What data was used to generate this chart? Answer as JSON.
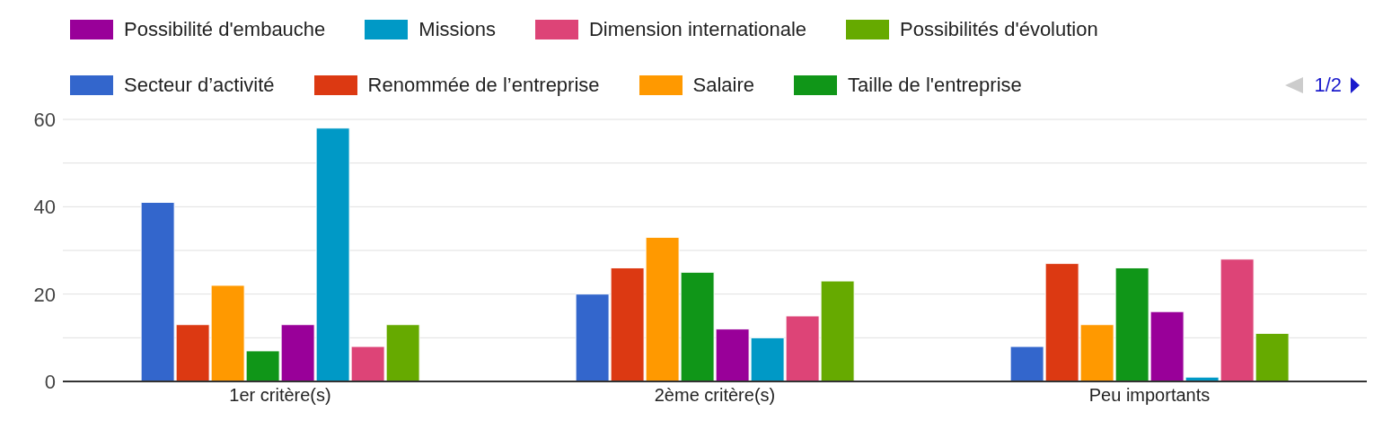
{
  "chart_data": {
    "type": "bar",
    "categories": [
      "1er critère(s)",
      "2ème critère(s)",
      "Peu importants"
    ],
    "series": [
      {
        "name": "Secteur d’activité",
        "color": "#3366cc",
        "values": [
          41,
          20,
          8
        ]
      },
      {
        "name": "Renommée de l’entreprise",
        "color": "#dc3912",
        "values": [
          13,
          26,
          27
        ]
      },
      {
        "name": "Salaire",
        "color": "#ff9900",
        "values": [
          22,
          33,
          13
        ]
      },
      {
        "name": "Taille de l'entreprise",
        "color": "#109618",
        "values": [
          7,
          25,
          26
        ]
      },
      {
        "name": "Possibilité d'embauche",
        "color": "#990099",
        "values": [
          13,
          12,
          16
        ]
      },
      {
        "name": "Missions",
        "color": "#0099c6",
        "values": [
          58,
          10,
          1
        ]
      },
      {
        "name": "Dimension internationale",
        "color": "#dd4477",
        "values": [
          8,
          15,
          28
        ]
      },
      {
        "name": "Possibilités d'évolution",
        "color": "#66aa00",
        "values": [
          13,
          23,
          11
        ]
      }
    ],
    "ylim": [
      0,
      60
    ],
    "yticks": [
      0,
      {
        "value": 10,
        "label": null
      },
      20,
      {
        "value": 30,
        "label": null
      },
      40,
      {
        "value": 50,
        "label": null
      },
      60
    ],
    "grid": "y",
    "legend": "top",
    "annotations": [
      "1/2"
    ]
  }
}
